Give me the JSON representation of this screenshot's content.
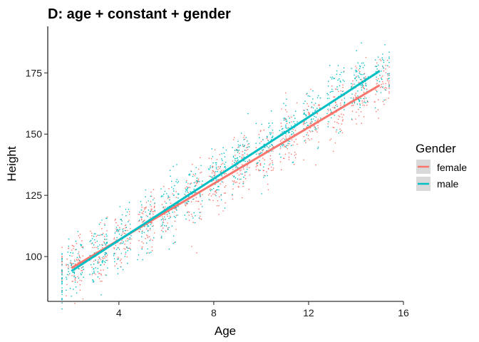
{
  "chart_data": {
    "type": "scatter",
    "title": "D: age + constant + gender",
    "xlabel": "Age",
    "ylabel": "Height",
    "xlim": [
      1.0,
      16.0
    ],
    "ylim": [
      81.7,
      194.0
    ],
    "xticks": [
      4,
      8,
      12,
      16
    ],
    "yticks": [
      100,
      125,
      150,
      175
    ],
    "grid": false,
    "legend": {
      "title": "Gender",
      "position": "right"
    },
    "point_count_per_series": 900,
    "series": [
      {
        "name": "female",
        "color": "#F8766D",
        "fit_line": {
          "x": [
            2.0,
            15.0
          ],
          "y": [
            95.3,
            170.0
          ]
        },
        "points_summary": {
          "x_range": [
            1.6,
            15.4
          ],
          "spread": 6.0
        }
      },
      {
        "name": "male",
        "color": "#00BFC4",
        "fit_line": {
          "x": [
            2.0,
            15.0
          ],
          "y": [
            94.1,
            175.8
          ]
        },
        "points_summary": {
          "x_range": [
            1.6,
            15.4
          ],
          "spread": 6.0
        }
      }
    ]
  }
}
